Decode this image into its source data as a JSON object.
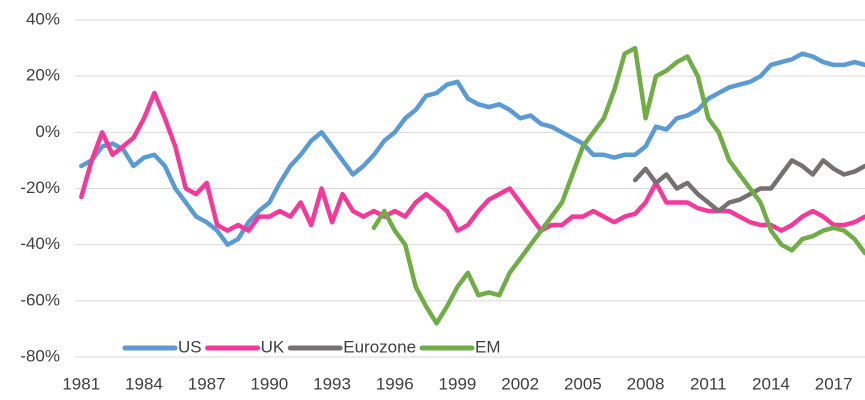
{
  "chart_data": {
    "type": "line",
    "x": [
      1981,
      1981.5,
      1982,
      1982.5,
      1983,
      1983.5,
      1984,
      1984.5,
      1985,
      1985.5,
      1986,
      1986.5,
      1987,
      1987.5,
      1988,
      1988.5,
      1989,
      1989.5,
      1990,
      1990.5,
      1991,
      1991.5,
      1992,
      1992.5,
      1993,
      1993.5,
      1994,
      1994.5,
      1995,
      1995.5,
      1996,
      1996.5,
      1997,
      1997.5,
      1998,
      1998.5,
      1999,
      1999.5,
      2000,
      2000.5,
      2001,
      2001.5,
      2002,
      2002.5,
      2003,
      2003.5,
      2004,
      2004.5,
      2005,
      2005.5,
      2006,
      2006.5,
      2007,
      2007.5,
      2008,
      2008.5,
      2009,
      2009.5,
      2010,
      2010.5,
      2011,
      2011.5,
      2012,
      2012.5,
      2013,
      2013.5,
      2014,
      2014.5,
      2015,
      2015.5,
      2016,
      2016.5,
      2017,
      2017.5,
      2018,
      2018.5
    ],
    "series": [
      {
        "name": "US",
        "color": "#5b9bd5",
        "values": [
          -12,
          -10,
          -5,
          -4,
          -6,
          -12,
          -9,
          -8,
          -12,
          -20,
          -25,
          -30,
          -32,
          -35,
          -40,
          -38,
          -32,
          -28,
          -25,
          -18,
          -12,
          -8,
          -3,
          0,
          -5,
          -10,
          -15,
          -12,
          -8,
          -3,
          0,
          5,
          8,
          13,
          14,
          17,
          18,
          12,
          10,
          9,
          10,
          8,
          5,
          6,
          3,
          2,
          0,
          -2,
          -4,
          -8,
          -8,
          -9,
          -8,
          -8,
          -5,
          2,
          1,
          5,
          6,
          8,
          12,
          14,
          16,
          17,
          18,
          20,
          24,
          25,
          26,
          28,
          27,
          25,
          24,
          24,
          25,
          24
        ]
      },
      {
        "name": "UK",
        "color": "#f4399a",
        "values": [
          -23,
          -10,
          0,
          -8,
          -5,
          -2,
          5,
          14,
          5,
          -5,
          -20,
          -22,
          -18,
          -33,
          -35,
          -33,
          -35,
          -30,
          -30,
          -28,
          -30,
          -25,
          -33,
          -20,
          -32,
          -22,
          -28,
          -30,
          -28,
          -30,
          -28,
          -30,
          -25,
          -22,
          -25,
          -28,
          -35,
          -33,
          -28,
          -24,
          -22,
          -20,
          -25,
          -30,
          -35,
          -33,
          -33,
          -30,
          -30,
          -28,
          -30,
          -32,
          -30,
          -29,
          -25,
          -18,
          -25,
          -25,
          -25,
          -27,
          -28,
          -28,
          -28,
          -30,
          -32,
          -33,
          -33,
          -35,
          -33,
          -30,
          -28,
          -30,
          -33,
          -33,
          -32,
          -30
        ]
      },
      {
        "name": "Eurozone",
        "color": "#767171",
        "values": [
          null,
          null,
          null,
          null,
          null,
          null,
          null,
          null,
          null,
          null,
          null,
          null,
          null,
          null,
          null,
          null,
          null,
          null,
          null,
          null,
          null,
          null,
          null,
          null,
          null,
          null,
          null,
          null,
          null,
          null,
          null,
          null,
          null,
          null,
          null,
          null,
          null,
          null,
          null,
          null,
          null,
          null,
          null,
          null,
          null,
          null,
          null,
          null,
          null,
          null,
          null,
          null,
          null,
          -17,
          -13,
          -18,
          -15,
          -20,
          -18,
          -22,
          -25,
          -28,
          -25,
          -24,
          -22,
          -20,
          -20,
          -15,
          -10,
          -12,
          -15,
          -10,
          -13,
          -15,
          -14,
          -12
        ]
      },
      {
        "name": "EM",
        "color": "#70ad47",
        "values": [
          null,
          null,
          null,
          null,
          null,
          null,
          null,
          null,
          null,
          null,
          null,
          null,
          null,
          null,
          null,
          null,
          null,
          null,
          null,
          null,
          null,
          null,
          null,
          null,
          null,
          null,
          null,
          null,
          -34,
          -28,
          -35,
          -40,
          -55,
          -62,
          -68,
          -62,
          -55,
          -50,
          -58,
          -57,
          -58,
          -50,
          -45,
          -40,
          -35,
          -30,
          -25,
          -15,
          -5,
          0,
          5,
          15,
          28,
          30,
          5,
          20,
          22,
          25,
          27,
          20,
          5,
          0,
          -10,
          -15,
          -20,
          -25,
          -35,
          -40,
          -42,
          -38,
          -37,
          -35,
          -34,
          -35,
          -38,
          -43
        ]
      }
    ],
    "xlim": [
      1980.7,
      2018.5
    ],
    "xticks": [
      1981,
      1984,
      1987,
      1990,
      1993,
      1996,
      1999,
      2002,
      2005,
      2008,
      2011,
      2014,
      2017
    ],
    "ylim": [
      -80,
      40
    ],
    "yticks": [
      {
        "value": -80,
        "label": "-80%"
      },
      {
        "value": -60,
        "label": "-60%"
      },
      {
        "value": -40,
        "label": "-40%"
      },
      {
        "value": -20,
        "label": "-20%"
      },
      {
        "value": 0,
        "label": "0%"
      },
      {
        "value": 20,
        "label": "20%"
      },
      {
        "value": 40,
        "label": "40%"
      }
    ],
    "grid": true,
    "legend": "bottom-left"
  }
}
